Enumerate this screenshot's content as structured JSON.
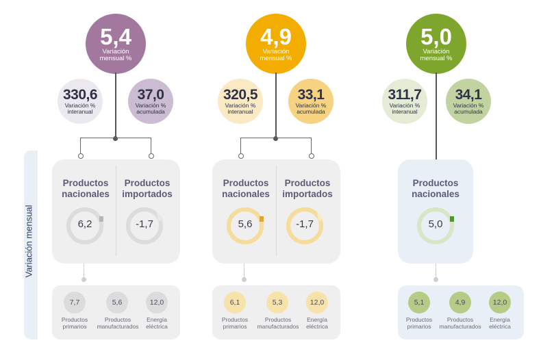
{
  "side_label": "Variación mensual",
  "columns": [
    {
      "color": "#a3789f",
      "main": {
        "value": "5,4",
        "label1": "Variación",
        "label2": "mensual %"
      },
      "left": {
        "value": "330,6",
        "label1": "Variación %",
        "label2": "interanual",
        "bg": "#ece8f0"
      },
      "right": {
        "value": "37,0",
        "label1": "Variación %",
        "label2": "acumulada",
        "bg": "#cbbcd2"
      },
      "products": [
        {
          "title1": "Productos",
          "title2": "nacionales",
          "value": "6,2"
        },
        {
          "title1": "Productos",
          "title2": "importados",
          "value": "-1,7"
        }
      ],
      "sub": [
        {
          "value": "7,7",
          "label1": "Productos",
          "label2": "primarios"
        },
        {
          "value": "5,6",
          "label1": "Productos",
          "label2": "manufacturados"
        },
        {
          "value": "12,0",
          "label1": "Energía",
          "label2": "eléctrica"
        }
      ]
    },
    {
      "color": "#f2ad00",
      "main": {
        "value": "4,9",
        "label1": "Variación",
        "label2": "mensual %"
      },
      "left": {
        "value": "320,5",
        "label1": "Variación %",
        "label2": "interanual",
        "bg": "#fbe9c3"
      },
      "right": {
        "value": "33,1",
        "label1": "Variación %",
        "label2": "acumulada",
        "bg": "#f6d382"
      },
      "products": [
        {
          "title1": "Productos",
          "title2": "nacionales",
          "value": "5,6"
        },
        {
          "title1": "Productos",
          "title2": "importados",
          "value": "-1,7"
        }
      ],
      "sub": [
        {
          "value": "6,1",
          "label1": "Productos",
          "label2": "primarios"
        },
        {
          "value": "5,3",
          "label1": "Productos",
          "label2": "manufacturados"
        },
        {
          "value": "12,0",
          "label1": "Energía",
          "label2": "eléctrica"
        }
      ]
    },
    {
      "color": "#7ea52c",
      "main": {
        "value": "5,0",
        "label1": "Variación",
        "label2": "mensual %"
      },
      "left": {
        "value": "311,7",
        "label1": "Variación %",
        "label2": "interanual",
        "bg": "#e4ecd5"
      },
      "right": {
        "value": "34,1",
        "label1": "Variación %",
        "label2": "acumulada",
        "bg": "#c1d3a0"
      },
      "products": [
        {
          "title1": "Productos",
          "title2": "nacionales",
          "value": "5,0"
        }
      ],
      "sub": [
        {
          "value": "5,1",
          "label1": "Productos",
          "label2": "primarios"
        },
        {
          "value": "4,9",
          "label1": "Productos",
          "label2": "manufacturados"
        },
        {
          "value": "12,0",
          "label1": "Energía",
          "label2": "eléctrica"
        }
      ]
    }
  ]
}
